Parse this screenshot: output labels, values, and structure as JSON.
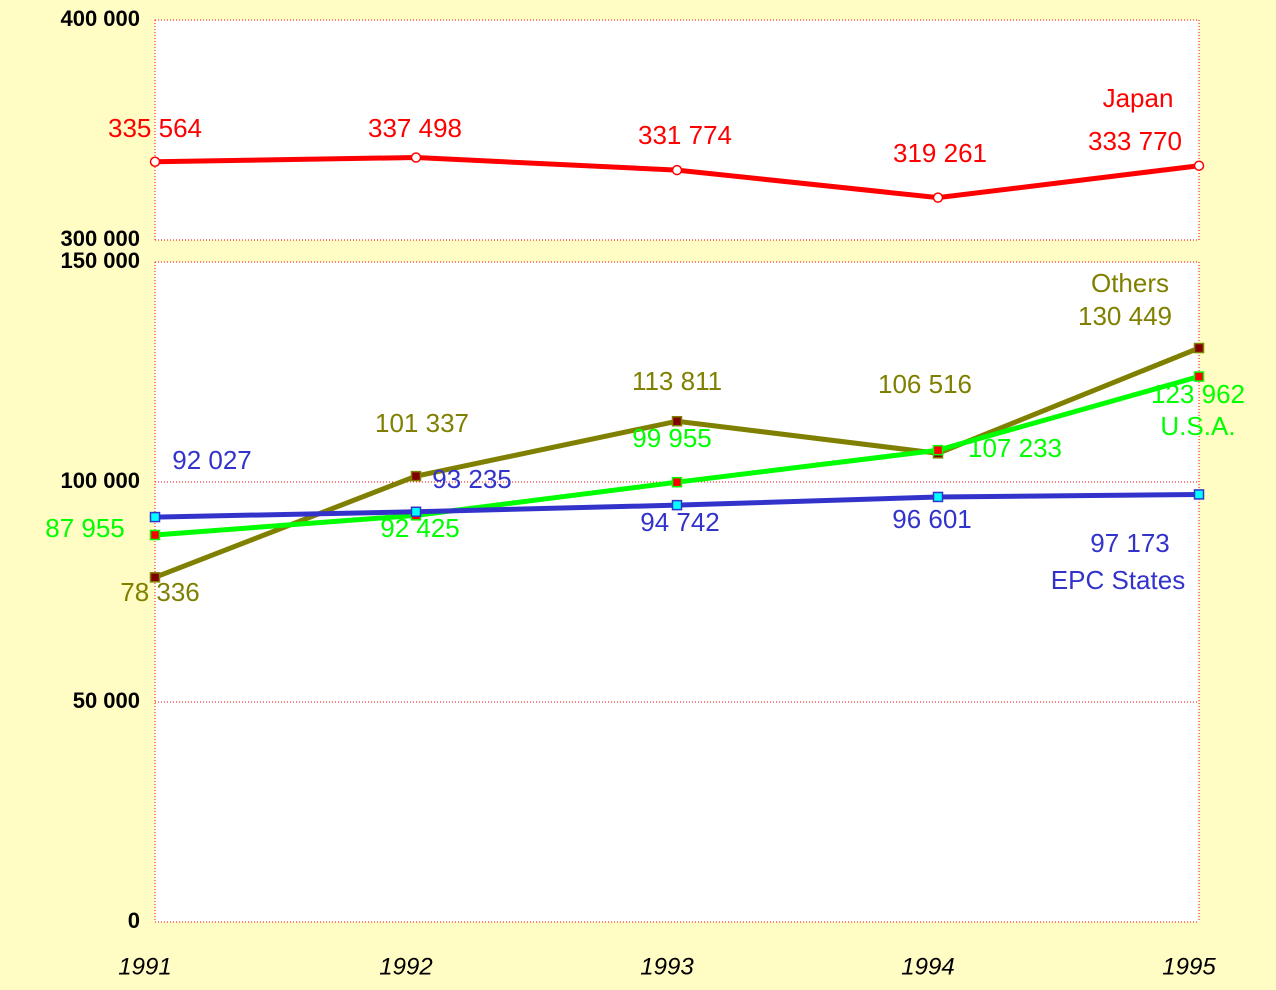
{
  "chart_data": [
    {
      "type": "line",
      "ylim": [
        300000,
        400000
      ],
      "yticks": [
        {
          "value": 300000,
          "label": "300 000"
        },
        {
          "value": 400000,
          "label": "400 000"
        }
      ],
      "grid": true,
      "series": [
        {
          "name": "Japan",
          "color": "#ff0000",
          "marker_color": "#ffffff",
          "values": [
            335564,
            337498,
            331774,
            319261,
            333770
          ],
          "value_labels": [
            "335 564",
            "337 498",
            "331 774",
            "319 261",
            "333 770"
          ]
        }
      ]
    },
    {
      "type": "line",
      "categories": [
        "1991",
        "1992",
        "1993",
        "1994",
        "1995"
      ],
      "ylim": [
        0,
        150000
      ],
      "yticks": [
        0,
        {
          "value": 50000,
          "label": "50 000"
        },
        {
          "value": 100000,
          "label": "100 000"
        },
        {
          "value": 150000,
          "label": "150 000"
        }
      ],
      "grid": true,
      "series": [
        {
          "name": "Others",
          "color": "#808000",
          "marker_color": "#800000",
          "values": [
            78336,
            101337,
            113811,
            106516,
            130449
          ],
          "value_labels": [
            "78 336",
            "101 337",
            "113 811",
            "106 516",
            "130 449"
          ]
        },
        {
          "name": "U.S.A.",
          "color": "#00ff00",
          "marker_color": "#ff0000",
          "values": [
            87955,
            92425,
            99955,
            107233,
            123962
          ],
          "value_labels": [
            "87 955",
            "92 425",
            "99 955",
            "107 233",
            "123 962"
          ]
        },
        {
          "name": "EPC States",
          "color": "#3333cc",
          "marker_color": "#00ffff",
          "values": [
            92027,
            93235,
            94742,
            96601,
            97173
          ],
          "value_labels": [
            "92 027",
            "93 235",
            "94 742",
            "96 601",
            "97 173"
          ]
        }
      ]
    }
  ]
}
